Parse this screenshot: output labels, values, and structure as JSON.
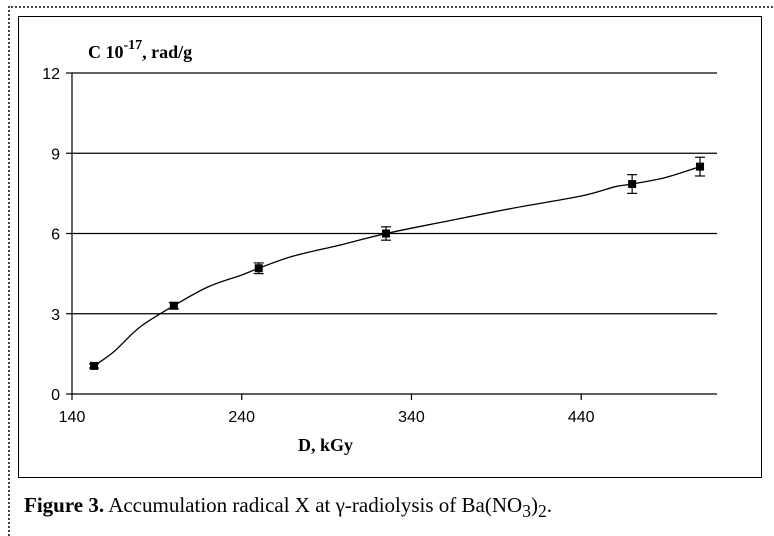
{
  "caption": {
    "label": "Figure 3.",
    "text_prefix": " Accumulation radical X at ",
    "gamma": "γ",
    "text_mid": "-radiolysis of Ba(NO",
    "sub3": "3",
    "close_paren": ")",
    "sub2": "2",
    "period": "."
  },
  "chart_data": {
    "type": "line",
    "ylabel_main": "C 10",
    "ylabel_exp": "-17",
    "ylabel_unit": ", rad/g",
    "xlabel": "D, kGy",
    "xlim": [
      140,
      520
    ],
    "ylim": [
      0,
      12
    ],
    "x_ticks": [
      140,
      240,
      340,
      440
    ],
    "y_ticks": [
      0,
      3,
      6,
      9,
      12
    ],
    "x_tick_labels": [
      "140",
      "240",
      "340",
      "440"
    ],
    "y_tick_labels": [
      "0",
      "3",
      "6",
      "9",
      "12"
    ],
    "grid": "horizontal",
    "points": [
      {
        "x": 153,
        "y": 1.05,
        "err": 0.08
      },
      {
        "x": 200,
        "y": 3.3,
        "err": 0.12
      },
      {
        "x": 250,
        "y": 4.7,
        "err": 0.2
      },
      {
        "x": 325,
        "y": 6.0,
        "err": 0.25
      },
      {
        "x": 470,
        "y": 7.85,
        "err": 0.35
      },
      {
        "x": 510,
        "y": 8.5,
        "err": 0.35
      }
    ],
    "curve": [
      [
        153,
        1.05
      ],
      [
        165,
        1.6
      ],
      [
        180,
        2.5
      ],
      [
        200,
        3.3
      ],
      [
        220,
        4.0
      ],
      [
        240,
        4.45
      ],
      [
        250,
        4.7
      ],
      [
        270,
        5.15
      ],
      [
        300,
        5.6
      ],
      [
        325,
        6.0
      ],
      [
        360,
        6.45
      ],
      [
        400,
        6.95
      ],
      [
        440,
        7.4
      ],
      [
        460,
        7.75
      ],
      [
        470,
        7.85
      ],
      [
        490,
        8.1
      ],
      [
        510,
        8.5
      ]
    ]
  }
}
